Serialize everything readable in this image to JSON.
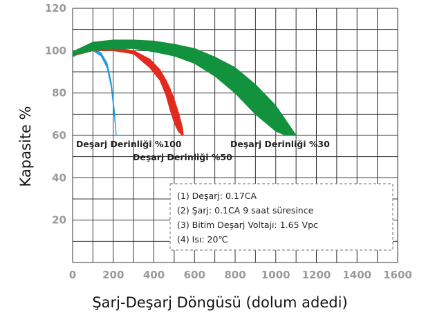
{
  "chart_data": {
    "type": "area",
    "xlabel": "Şarj-Deşarj Döngüsü (dolum adedi)",
    "ylabel": "Kapasite %",
    "xlim": [
      0,
      1600
    ],
    "ylim": [
      0,
      120
    ],
    "x_ticks": [
      "0",
      "200",
      "400",
      "600",
      "800",
      "1000",
      "1200",
      "1400",
      "1600"
    ],
    "y_ticks": [
      "20",
      "40",
      "60",
      "80",
      "100",
      "120"
    ],
    "grid": true,
    "colors": {
      "blue": "#1f9be0",
      "red": "#e32a1f",
      "green": "#13923e",
      "grid": "#333333"
    },
    "series": [
      {
        "label": "Deşarj Derinliği %100",
        "color": "#1f9be0",
        "x": [
          0,
          50,
          100,
          140,
          170,
          190,
          205,
          215
        ],
        "upper": [
          97.5,
          100.5,
          101,
          99,
          94,
          85,
          72,
          60
        ],
        "lower": [
          97,
          99.5,
          100,
          97.5,
          92,
          83,
          70,
          60
        ]
      },
      {
        "label": "Deşarj Derinliği %50",
        "color": "#e32a1f",
        "x": [
          0,
          100,
          200,
          300,
          380,
          430,
          460,
          480,
          500,
          520,
          540,
          545
        ],
        "upper": [
          98,
          101.5,
          101.5,
          100,
          96,
          91,
          86,
          82,
          77,
          71,
          64,
          60
        ],
        "lower": [
          97.5,
          100,
          100,
          98.5,
          92,
          86,
          79,
          72,
          66,
          62,
          60,
          60
        ]
      },
      {
        "label": "Deşarj Derinliği %30",
        "color": "#13923e",
        "x": [
          0,
          100,
          200,
          300,
          400,
          500,
          600,
          700,
          800,
          900,
          1000,
          1050,
          1100
        ],
        "upper": [
          99.5,
          104,
          105,
          105,
          104.5,
          103,
          101,
          97,
          92,
          84,
          74,
          67,
          60
        ],
        "lower": [
          98,
          100,
          101,
          101,
          99.5,
          97.5,
          94,
          88,
          80,
          70,
          62,
          60,
          60
        ]
      }
    ],
    "notes": [
      "(1) Deşarj: 0.17CA",
      "(2) Şarj:  0.1CA 9 saat süresince",
      "(3) Bitim Deşarj Voltajı: 1.65 Vpc",
      "(4) Isı: 20℃"
    ]
  }
}
